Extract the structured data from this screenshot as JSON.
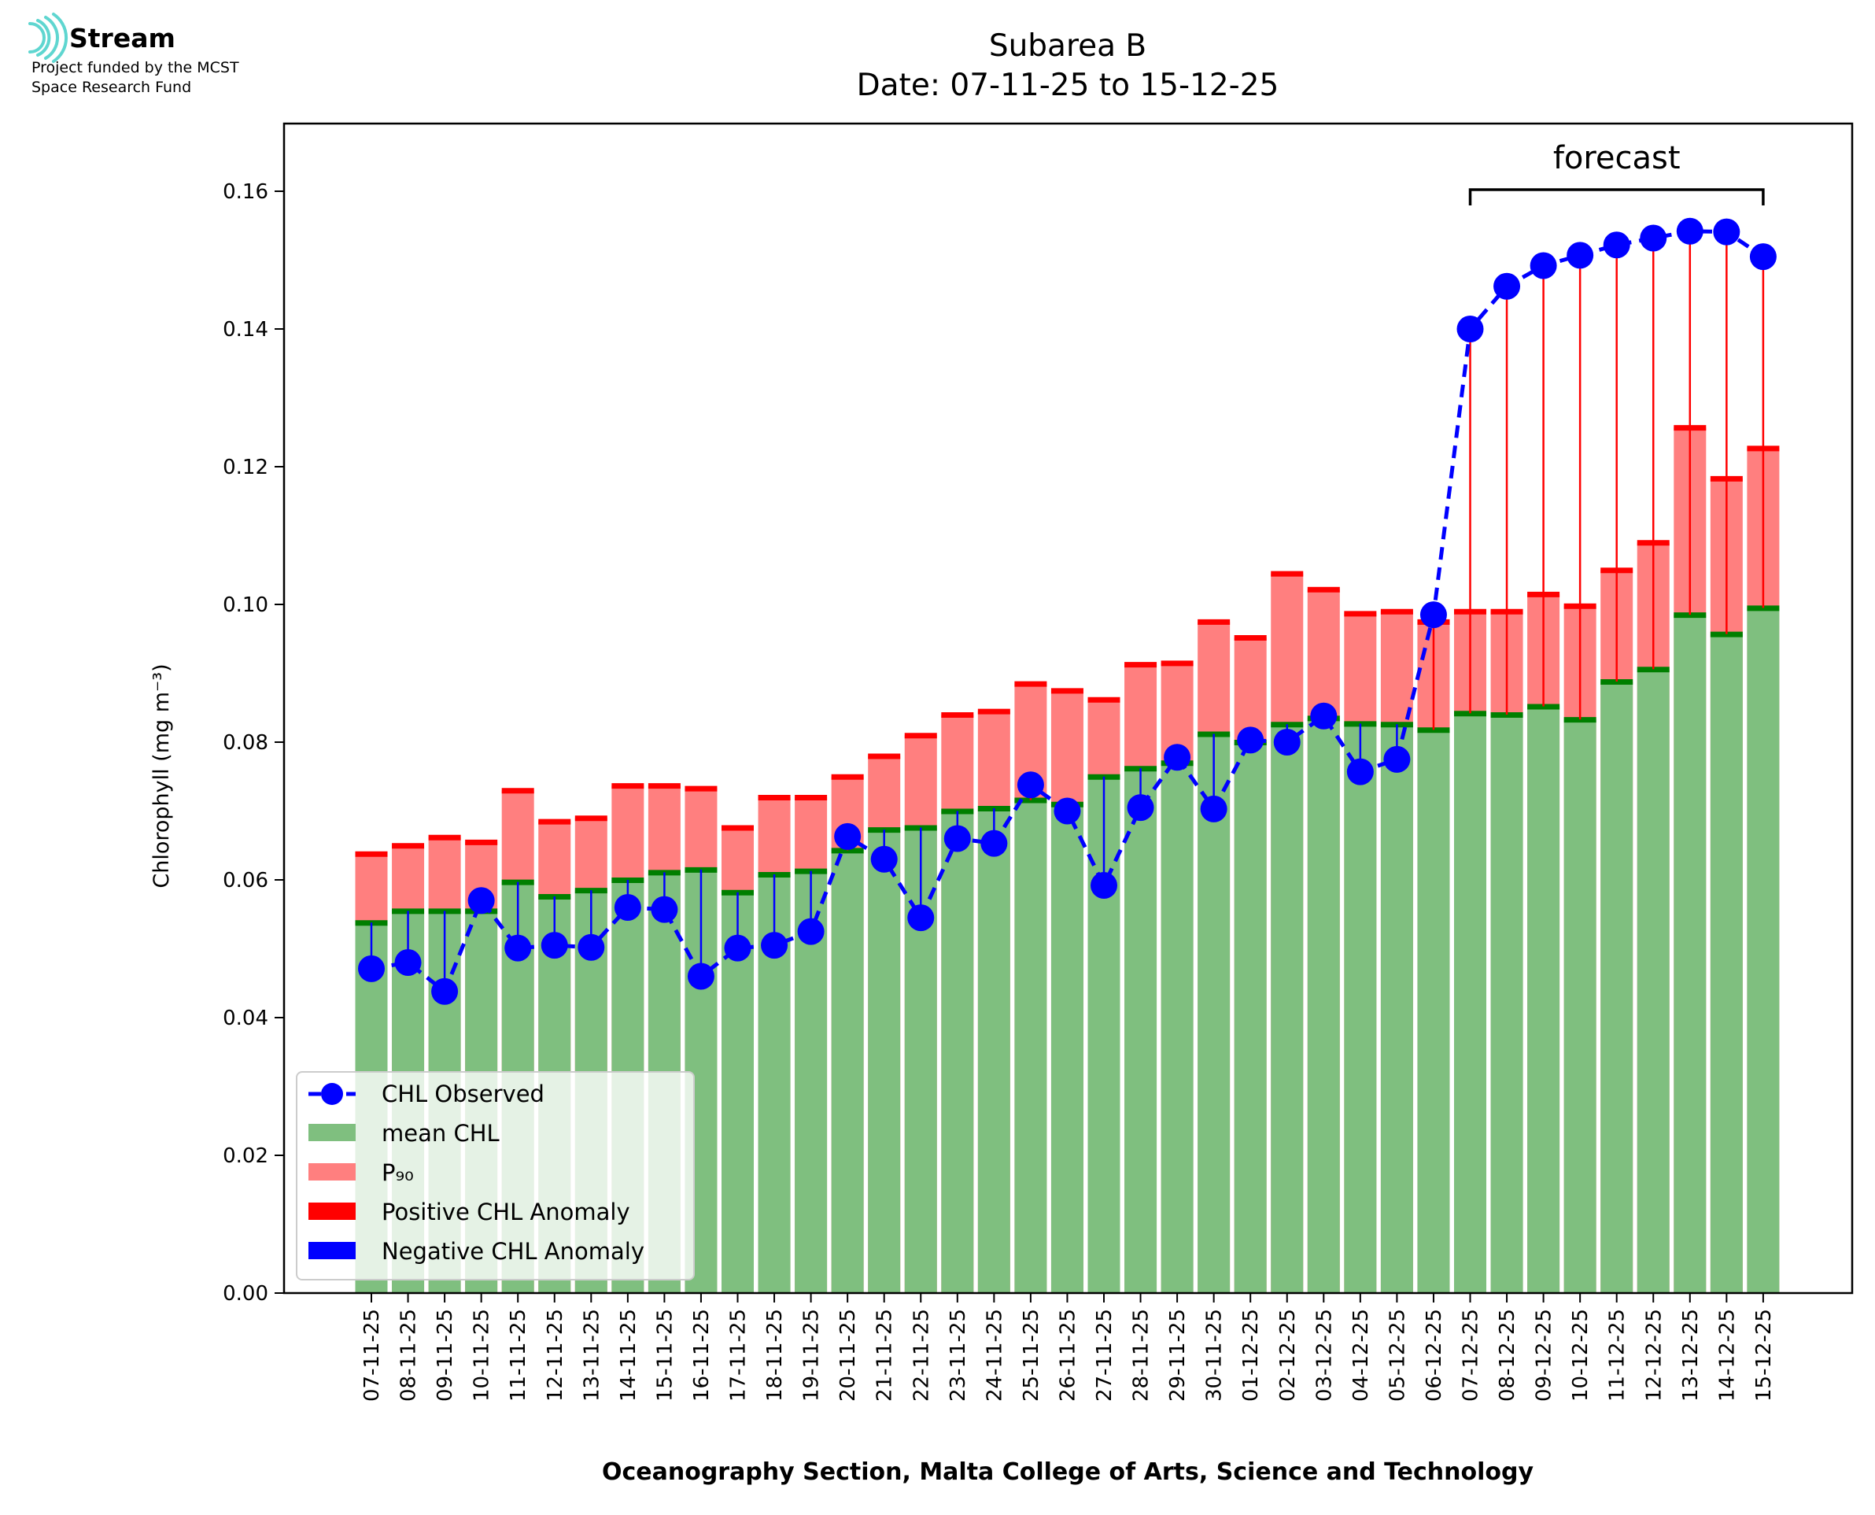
{
  "logo": {
    "name": "Stream",
    "line1": "Project funded by the MCST",
    "line2": "Space Research Fund",
    "icon": "stream-waves-icon"
  },
  "colors": {
    "mean": "#7fbf7f",
    "mean_cap": "#007f00",
    "p90": "#ff7f7f",
    "p90_cap": "#ff0000",
    "pos_anom": "#ff0000",
    "neg_anom": "#0000ff",
    "observed": "#0000ff"
  },
  "chart_data": {
    "type": "bar",
    "title": "Subarea B",
    "subtitle": "Date: 07-11-25 to 15-12-25",
    "xlabel": "Oceanography Section, Malta College of Arts, Science and Technology",
    "ylabel": "Chlorophyll (mg m⁻³)",
    "ylim": [
      0,
      0.17
    ],
    "yticks": [
      "0.00",
      "0.02",
      "0.04",
      "0.06",
      "0.08",
      "0.10",
      "0.12",
      "0.14",
      "0.16"
    ],
    "forecast_label": "forecast",
    "forecast_range": [
      "07-12-25",
      "15-12-25"
    ],
    "legend_position": "lower-left",
    "legend": [
      "CHL Observed",
      "mean CHL",
      "P₉₀",
      "Positive CHL Anomaly",
      "Negative CHL Anomaly"
    ],
    "categories": [
      "07-11-25",
      "08-11-25",
      "09-11-25",
      "10-11-25",
      "11-11-25",
      "12-11-25",
      "13-11-25",
      "14-11-25",
      "15-11-25",
      "16-11-25",
      "17-11-25",
      "18-11-25",
      "19-11-25",
      "20-11-25",
      "21-11-25",
      "22-11-25",
      "23-11-25",
      "24-11-25",
      "25-11-25",
      "26-11-25",
      "27-11-25",
      "28-11-25",
      "29-11-25",
      "30-11-25",
      "01-12-25",
      "02-12-25",
      "03-12-25",
      "04-12-25",
      "05-12-25",
      "06-12-25",
      "07-12-25",
      "08-12-25",
      "09-12-25",
      "10-12-25",
      "11-12-25",
      "12-12-25",
      "13-12-25",
      "14-12-25",
      "15-12-25"
    ],
    "series": [
      {
        "name": "mean CHL",
        "values": [
          0.0538,
          0.0555,
          0.0555,
          0.0555,
          0.0597,
          0.0576,
          0.0585,
          0.06,
          0.0611,
          0.0615,
          0.0582,
          0.0608,
          0.0613,
          0.0643,
          0.0673,
          0.0676,
          0.07,
          0.0704,
          0.0716,
          0.071,
          0.075,
          0.0762,
          0.077,
          0.0812,
          0.08,
          0.0826,
          0.0835,
          0.0827,
          0.0826,
          0.0818,
          0.0842,
          0.084,
          0.0852,
          0.0833,
          0.0888,
          0.0906,
          0.0985,
          0.0957,
          0.0995
        ]
      },
      {
        "name": "P₉₀",
        "values": [
          0.0638,
          0.065,
          0.0662,
          0.0655,
          0.073,
          0.0685,
          0.069,
          0.0737,
          0.0737,
          0.0733,
          0.0676,
          0.072,
          0.072,
          0.075,
          0.078,
          0.081,
          0.084,
          0.0845,
          0.0885,
          0.0875,
          0.0862,
          0.0913,
          0.0915,
          0.0975,
          0.0952,
          0.1045,
          0.1022,
          0.0987,
          0.099,
          0.0975,
          0.099,
          0.099,
          0.1015,
          0.0998,
          0.105,
          0.109,
          0.1257,
          0.1183,
          0.1227
        ]
      },
      {
        "name": "CHL Observed",
        "values": [
          0.0471,
          0.048,
          0.0438,
          0.057,
          0.0501,
          0.0505,
          0.0502,
          0.056,
          0.0557,
          0.046,
          0.0501,
          0.0505,
          0.0525,
          0.0663,
          0.063,
          0.0545,
          0.066,
          0.0653,
          0.0738,
          0.07,
          0.0592,
          0.0705,
          0.0778,
          0.0703,
          0.0803,
          0.08,
          0.0838,
          0.0757,
          0.0775,
          0.0985,
          0.14,
          0.1462,
          0.1492,
          0.1507,
          0.1522,
          0.1532,
          0.1542,
          0.1541,
          0.1505
        ]
      }
    ]
  }
}
